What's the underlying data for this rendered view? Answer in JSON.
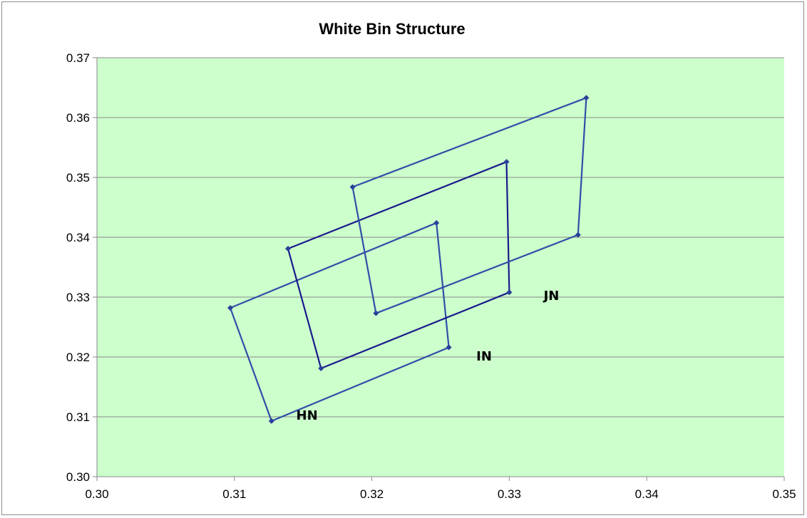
{
  "chart_data": {
    "type": "line",
    "title": "White Bin Structure",
    "xlabel": "",
    "ylabel": "",
    "xlim": [
      0.3,
      0.35
    ],
    "ylim": [
      0.3,
      0.37
    ],
    "x_ticks": [
      "0.30",
      "0.31",
      "0.32",
      "0.33",
      "0.34",
      "0.35"
    ],
    "y_ticks": [
      "0.30",
      "0.31",
      "0.32",
      "0.33",
      "0.34",
      "0.35",
      "0.36",
      "0.37"
    ],
    "grid": "horizontal",
    "plot_background": "#ccffcc",
    "line_colors": [
      "#2e4ea8",
      "#1a1a8c",
      "#2e4ea8"
    ],
    "marker_color": "#2a3f9a",
    "series": [
      {
        "points": [
          [
            0.3097,
            0.3282
          ],
          [
            0.3247,
            0.3424
          ],
          [
            0.3256,
            0.3216
          ],
          [
            0.3127,
            0.3093
          ],
          [
            0.3097,
            0.3282
          ]
        ]
      },
      {
        "points": [
          [
            0.3139,
            0.3381
          ],
          [
            0.3298,
            0.3526
          ],
          [
            0.33,
            0.3308
          ],
          [
            0.3163,
            0.3181
          ],
          [
            0.3139,
            0.3381
          ]
        ]
      },
      {
        "points": [
          [
            0.3186,
            0.3484
          ],
          [
            0.3356,
            0.3633
          ],
          [
            0.335,
            0.3404
          ],
          [
            0.3203,
            0.3273
          ],
          [
            0.3186,
            0.3484
          ]
        ]
      }
    ],
    "annotations": [
      {
        "text": "HN",
        "x": 0.3145,
        "y": 0.3095
      },
      {
        "text": "IN",
        "x": 0.3276,
        "y": 0.3194
      },
      {
        "text": "JN",
        "x": 0.3325,
        "y": 0.3295
      }
    ]
  }
}
